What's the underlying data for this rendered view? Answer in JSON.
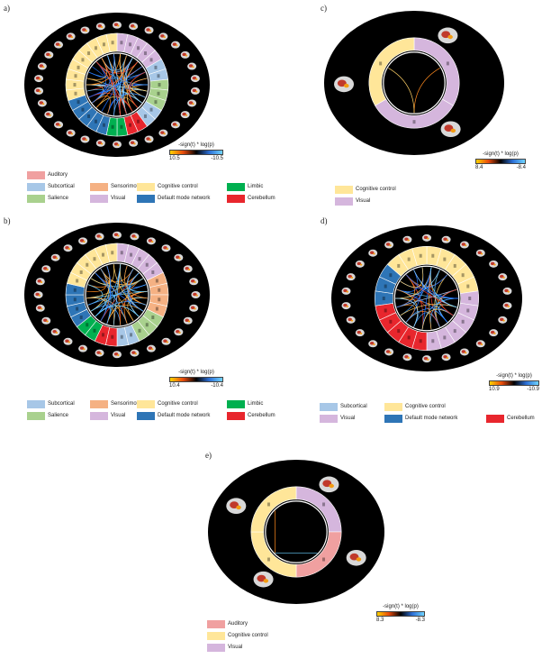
{
  "panels": [
    {
      "id": "a",
      "label": "a)",
      "colorbar": {
        "title": "-sign(t) * log(p)",
        "min": "10.5",
        "max": "-10.5"
      },
      "legend": [
        {
          "name": "Auditory",
          "color": "#f0a0a0"
        },
        {
          "name": "Subcortical",
          "color": "#a7c7e7"
        },
        {
          "name": "Sensorimotor",
          "color": "#f5b183"
        },
        {
          "name": "Cognitive control",
          "color": "#ffe699"
        },
        {
          "name": "Limbic",
          "color": "#00b050"
        },
        {
          "name": "Salience",
          "color": "#a9d18e"
        },
        {
          "name": "Visual",
          "color": "#d5b6dd"
        },
        {
          "name": "Default mode network",
          "color": "#2e75b6"
        },
        {
          "name": "Cerebellum",
          "color": "#e8262d"
        }
      ],
      "ring": [
        {
          "network": "Visual",
          "count": 5
        },
        {
          "network": "Subcortical",
          "count": 2
        },
        {
          "network": "Salience",
          "count": 3
        },
        {
          "network": "Subcortical",
          "count": 2
        },
        {
          "network": "Cerebellum",
          "count": 2
        },
        {
          "network": "Limbic",
          "count": 2
        },
        {
          "network": "Default mode network",
          "count": 5
        },
        {
          "network": "Cognitive control",
          "count": 9
        }
      ]
    },
    {
      "id": "b",
      "label": "b)",
      "colorbar": {
        "title": "-sign(t) * log(p)",
        "min": "10.4",
        "max": "-10.4"
      },
      "legend": [
        {
          "name": "Subcortical",
          "color": "#a7c7e7"
        },
        {
          "name": "Sensorimotor",
          "color": "#f5b183"
        },
        {
          "name": "Cognitive control",
          "color": "#ffe699"
        },
        {
          "name": "Limbic",
          "color": "#00b050"
        },
        {
          "name": "Salience",
          "color": "#a9d18e"
        },
        {
          "name": "Visual",
          "color": "#d5b6dd"
        },
        {
          "name": "Default mode network",
          "color": "#2e75b6"
        },
        {
          "name": "Cerebellum",
          "color": "#e8262d"
        }
      ],
      "ring": [
        {
          "network": "Visual",
          "count": 5
        },
        {
          "network": "Sensorimotor",
          "count": 4
        },
        {
          "network": "Salience",
          "count": 3
        },
        {
          "network": "Subcortical",
          "count": 2
        },
        {
          "network": "Cerebellum",
          "count": 2
        },
        {
          "network": "Limbic",
          "count": 2
        },
        {
          "network": "Default mode network",
          "count": 4
        },
        {
          "network": "Cognitive control",
          "count": 6
        }
      ]
    },
    {
      "id": "c",
      "label": "c)",
      "colorbar": {
        "title": "-sign(t) * log(p)",
        "min": "8.4",
        "max": "-8.4"
      },
      "legend": [
        {
          "name": "Cognitive control",
          "color": "#ffe699"
        },
        {
          "name": "Visual",
          "color": "#d5b6dd"
        }
      ],
      "ring": [
        {
          "network": "Visual",
          "count": 2
        },
        {
          "network": "Cognitive control",
          "count": 1
        }
      ]
    },
    {
      "id": "d",
      "label": "d)",
      "colorbar": {
        "title": "-sign(t) * log(p)",
        "min": "10.9",
        "max": "-10.9"
      },
      "legend": [
        {
          "name": "Subcortical",
          "color": "#a7c7e7"
        },
        {
          "name": "Cognitive control",
          "color": "#ffe699"
        },
        {
          "name": "Visual",
          "color": "#d5b6dd"
        },
        {
          "name": "Default mode network",
          "color": "#2e75b6"
        },
        {
          "name": "Cerebellum",
          "color": "#e8262d"
        }
      ],
      "ring": [
        {
          "network": "Cognitive control",
          "count": 5
        },
        {
          "network": "Visual",
          "count": 6
        },
        {
          "network": "Cerebellum",
          "count": 5
        },
        {
          "network": "Default mode network",
          "count": 3
        },
        {
          "network": "Cognitive control",
          "count": 3
        }
      ]
    },
    {
      "id": "e",
      "label": "e)",
      "colorbar": {
        "title": "-sign(t) * log(p)",
        "min": "8.3",
        "max": "-8.3"
      },
      "legend": [
        {
          "name": "Auditory",
          "color": "#f0a0a0"
        },
        {
          "name": "Cognitive control",
          "color": "#ffe699"
        },
        {
          "name": "Visual",
          "color": "#d5b6dd"
        }
      ],
      "ring": [
        {
          "network": "Visual",
          "count": 1
        },
        {
          "network": "Auditory",
          "count": 1
        },
        {
          "network": "Cognitive control",
          "count": 2
        }
      ]
    }
  ]
}
